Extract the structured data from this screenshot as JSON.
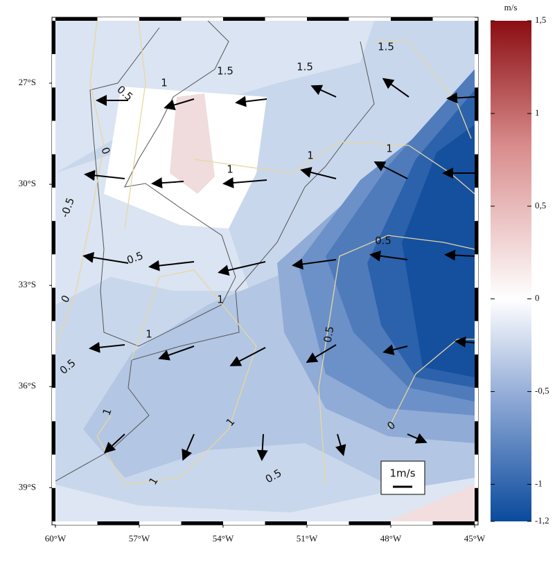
{
  "map": {
    "lonlim": [
      -60,
      -45
    ],
    "latlim": [
      -25.15,
      -40
    ],
    "lon_ticks": [
      {
        "value": -60,
        "label": "60°W"
      },
      {
        "value": -57,
        "label": "57°W"
      },
      {
        "value": -54,
        "label": "54°W"
      },
      {
        "value": -51,
        "label": "51°W"
      },
      {
        "value": -48,
        "label": "48°W"
      },
      {
        "value": -45,
        "label": "45°W"
      }
    ],
    "lat_ticks": [
      {
        "value": -27,
        "label": "27°S"
      },
      {
        "value": -30,
        "label": "30°S"
      },
      {
        "value": -33,
        "label": "33°S"
      },
      {
        "value": -36,
        "label": "36°S"
      },
      {
        "value": -39,
        "label": "39°S"
      }
    ],
    "contour_labels": [
      "1.5",
      "1.5",
      "1.5",
      "1",
      "0.5",
      "0",
      "1",
      "1",
      "1",
      "-0.5",
      "0.5",
      "0.5",
      "0",
      "1",
      "1",
      "0.5",
      "0.5",
      "1",
      "1",
      "0",
      "0.5",
      "1"
    ],
    "scale_label": "1m/s"
  },
  "colorbar": {
    "title": "m/s",
    "range": [
      -1.2,
      1.5
    ],
    "ticks": [
      {
        "value": 1.5,
        "label": "1,5"
      },
      {
        "value": 1,
        "label": "1"
      },
      {
        "value": 0.5,
        "label": "0,5"
      },
      {
        "value": 0,
        "label": "0"
      },
      {
        "value": -0.5,
        "label": "-0,5"
      },
      {
        "value": -1,
        "label": "-1"
      },
      {
        "value": -1.2,
        "label": "-1,2"
      }
    ]
  }
}
